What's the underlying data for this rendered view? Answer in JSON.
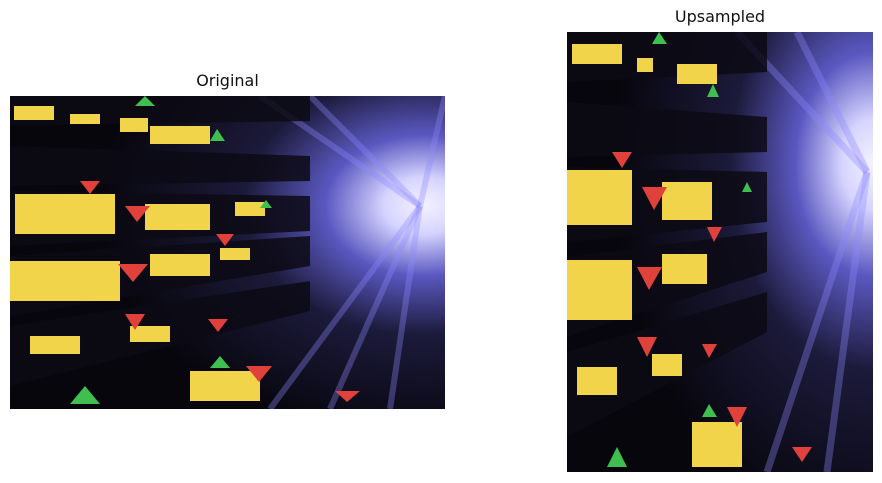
{
  "panels": [
    {
      "title": "Original",
      "image_subject": "stock-ticker-tunnel-photo"
    },
    {
      "title": "Upsampled",
      "image_subject": "stock-ticker-tunnel-photo"
    }
  ],
  "colors": {
    "background": "#ffffff",
    "title_text": "#111111",
    "ticker_yellow": "#f2d44a",
    "ticker_red": "#e0413a",
    "ticker_green": "#3fbf4f",
    "glow_core": "#f4f2ff",
    "glow_blue": "#6b6bd8"
  }
}
